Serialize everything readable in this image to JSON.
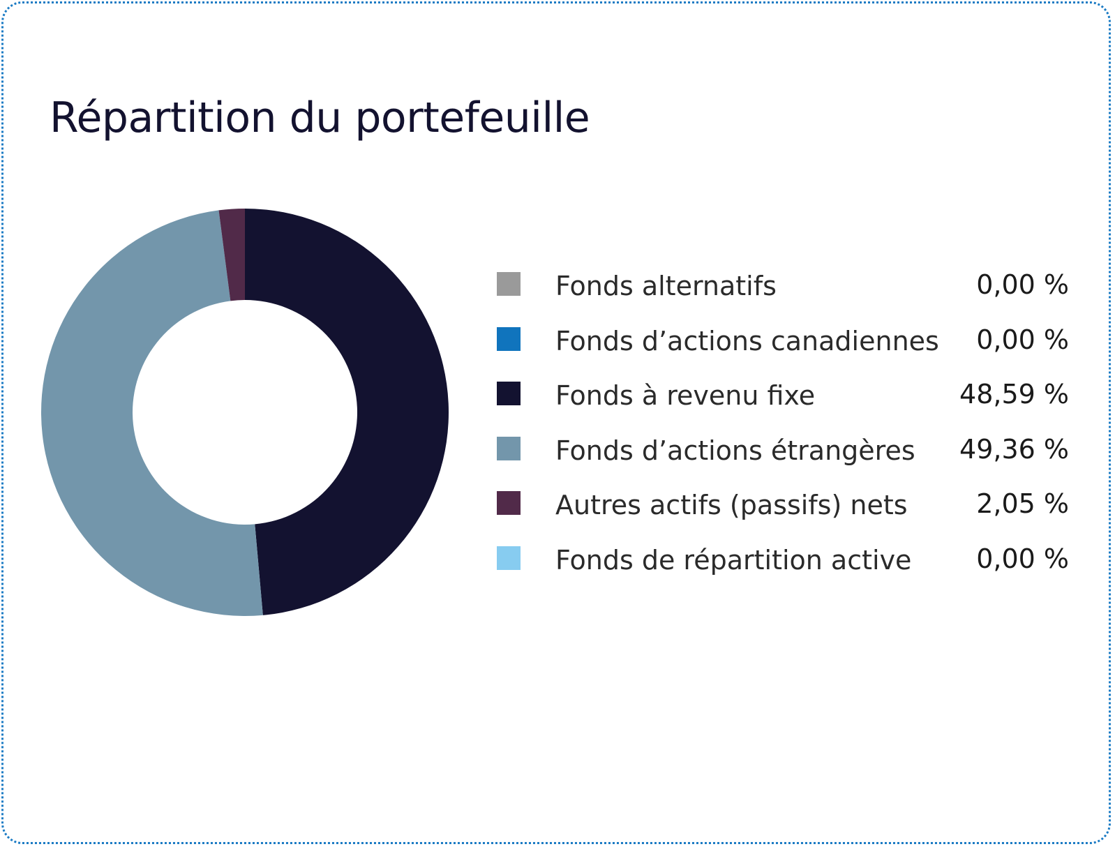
{
  "chart_data": {
    "type": "pie",
    "title": "Répartition du portefeuille",
    "donut": true,
    "legend_position": "right",
    "series": [
      {
        "label": "Fonds alternatifs",
        "value": 0.0,
        "display": "0,00 %",
        "color": "#9a9a9a"
      },
      {
        "label": "Fonds d’actions canadiennes",
        "value": 0.0,
        "display": "0,00 %",
        "color": "#1074bd"
      },
      {
        "label": "Fonds à revenu fixe",
        "value": 48.59,
        "display": "48,59 %",
        "color": "#131230"
      },
      {
        "label": "Fonds d’actions étrangères",
        "value": 49.36,
        "display": "49,36 %",
        "color": "#7396ab"
      },
      {
        "label": "Autres actifs (passifs) nets",
        "value": 2.05,
        "display": "2,05 %",
        "color": "#512a49"
      },
      {
        "label": "Fonds de répartition active",
        "value": 0.0,
        "display": "0,00 %",
        "color": "#87ccf0"
      }
    ]
  },
  "theme": {
    "border_color": "#1b7bc4",
    "title_color": "#13122f"
  }
}
